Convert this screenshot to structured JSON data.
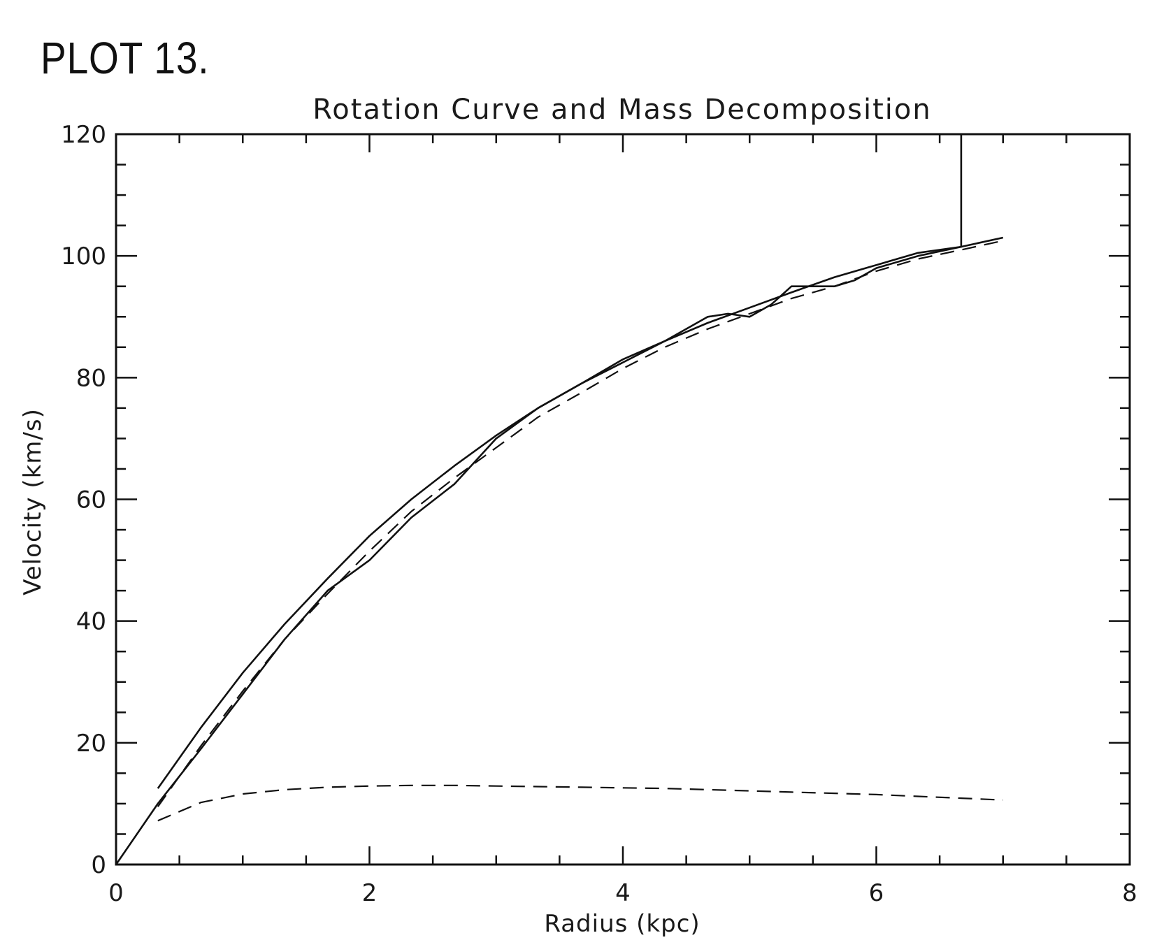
{
  "header": {
    "plot_label": "PLOT 13."
  },
  "chart_data": {
    "type": "line",
    "title": "Rotation Curve and Mass Decomposition",
    "xlabel": "Radius (kpc)",
    "ylabel": "Velocity (km/s)",
    "xlim": [
      0,
      8
    ],
    "ylim": [
      0,
      120
    ],
    "xticks": [
      "0",
      "2",
      "4",
      "6",
      "8"
    ],
    "yticks": [
      "0",
      "20",
      "40",
      "60",
      "80",
      "100",
      "120"
    ],
    "grid": false,
    "legend": "none",
    "series": [
      {
        "style": "solid",
        "x": [
          0,
          0.33,
          0.67,
          1.0,
          1.33,
          1.67,
          2.0,
          2.33,
          2.67,
          3.0,
          3.33,
          3.67,
          4.0,
          4.33,
          4.67,
          4.83,
          5.0,
          5.17,
          5.33,
          5.5,
          5.67,
          5.83,
          6.0,
          6.33,
          6.67,
          6.67
        ],
        "y": [
          0,
          10,
          19,
          28,
          37,
          45,
          50,
          57,
          62.5,
          70,
          75,
          79,
          83,
          86,
          90,
          90.5,
          90,
          92,
          95,
          95,
          95,
          96,
          98,
          100,
          101.5,
          120
        ]
      },
      {
        "style": "solid",
        "x": [
          0.33,
          0.67,
          1.0,
          1.33,
          1.67,
          2.0,
          2.33,
          2.67,
          3.0,
          3.33,
          3.67,
          4.0,
          4.33,
          4.67,
          5.0,
          5.33,
          5.67,
          6.0,
          6.33,
          6.67,
          7.0
        ],
        "y": [
          12.5,
          22.5,
          31.5,
          39.5,
          47,
          54,
          60,
          65.5,
          70.5,
          75,
          79,
          82.5,
          86,
          89,
          91.5,
          94,
          96.5,
          98.5,
          100.5,
          101.5,
          103
        ]
      },
      {
        "style": "dashed",
        "x": [
          0.33,
          0.67,
          1.0,
          1.33,
          1.67,
          2.0,
          2.33,
          2.67,
          3.0,
          3.33,
          3.67,
          4.0,
          4.33,
          4.67,
          5.0,
          5.33,
          5.67,
          6.0,
          6.33,
          6.67,
          7.0
        ],
        "y": [
          9.5,
          19.5,
          28.5,
          37,
          44.5,
          51.5,
          58,
          63.5,
          68.5,
          73.5,
          77.5,
          81.5,
          85,
          88,
          90.5,
          93,
          95,
          97.5,
          99.5,
          101,
          102.5
        ]
      },
      {
        "style": "dashed",
        "x": [
          0.33,
          0.67,
          1.0,
          1.33,
          1.67,
          2.0,
          2.33,
          2.67,
          3.0,
          3.33,
          3.67,
          4.0,
          4.33,
          4.67,
          5.0,
          5.33,
          5.67,
          6.0,
          6.33,
          6.67,
          7.0
        ],
        "y": [
          7.2,
          10.2,
          11.6,
          12.3,
          12.7,
          12.9,
          13.0,
          13.0,
          12.9,
          12.8,
          12.7,
          12.6,
          12.5,
          12.3,
          12.1,
          11.9,
          11.7,
          11.5,
          11.2,
          10.9,
          10.6
        ]
      }
    ]
  }
}
